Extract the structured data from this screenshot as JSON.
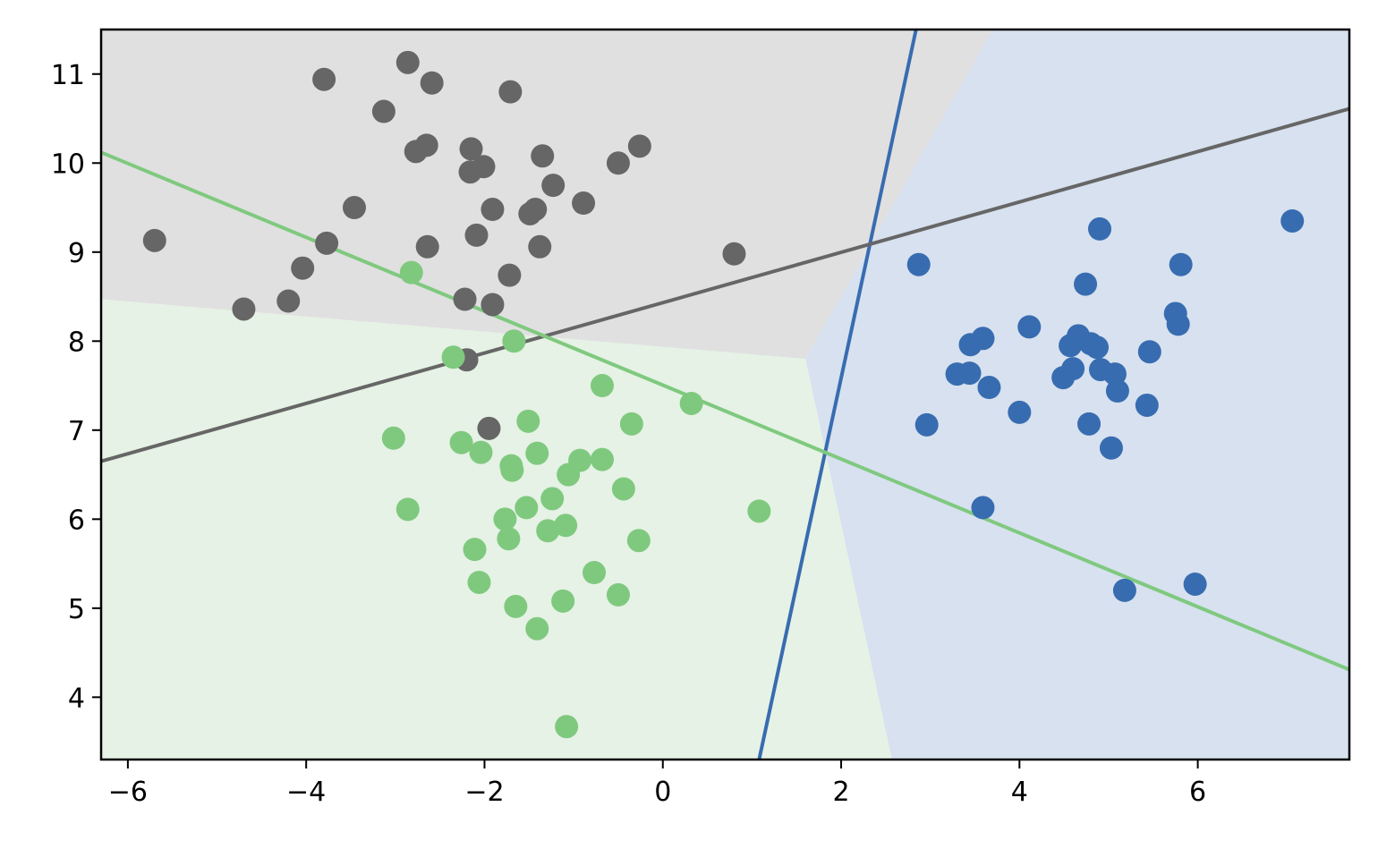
{
  "chart_data": {
    "type": "scatter",
    "title": "",
    "xlabel": "",
    "ylabel": "",
    "xlim": [
      -6.3,
      7.7
    ],
    "ylim": [
      3.3,
      11.5
    ],
    "x_ticks": [
      -6,
      -4,
      -2,
      0,
      2,
      4,
      6
    ],
    "x_tick_labels": [
      "−6",
      "−4",
      "−2",
      "0",
      "2",
      "4",
      "6"
    ],
    "y_ticks": [
      4,
      5,
      6,
      7,
      8,
      9,
      10,
      11
    ],
    "y_tick_labels": [
      "4",
      "5",
      "6",
      "7",
      "8",
      "9",
      "10",
      "11"
    ],
    "grid": false,
    "legend": "none",
    "colors": {
      "gray": "#666666",
      "green": "#7fc97f",
      "blue": "#386cb0",
      "gray_region": "#e0e0e0",
      "green_region": "#e5f2e5",
      "blue_region": "#d7e1ef"
    },
    "regions": [
      {
        "class": "gray",
        "polygon": [
          [
            -6.3,
            11.5
          ],
          [
            3.7,
            11.5
          ],
          [
            1.6,
            7.8
          ],
          [
            -6.3,
            8.47
          ]
        ]
      },
      {
        "class": "green",
        "polygon": [
          [
            -6.3,
            8.47
          ],
          [
            1.6,
            7.8
          ],
          [
            2.57,
            3.3
          ],
          [
            -6.3,
            3.3
          ]
        ]
      },
      {
        "class": "blue",
        "polygon": [
          [
            3.7,
            11.5
          ],
          [
            7.7,
            11.5
          ],
          [
            7.7,
            3.3
          ],
          [
            2.57,
            3.3
          ],
          [
            1.6,
            7.8
          ]
        ]
      }
    ],
    "lines": [
      {
        "class": "blue",
        "points": [
          [
            1.08,
            3.3
          ],
          [
            2.84,
            11.5
          ]
        ]
      },
      {
        "class": "gray",
        "points": [
          [
            -6.3,
            6.65
          ],
          [
            7.7,
            10.61
          ]
        ]
      },
      {
        "class": "green",
        "points": [
          [
            -6.3,
            10.12
          ],
          [
            7.7,
            4.31
          ]
        ]
      }
    ],
    "series": [
      {
        "class": "gray",
        "points": [
          [
            -5.7,
            9.13
          ],
          [
            -3.8,
            10.94
          ],
          [
            -2.86,
            11.13
          ],
          [
            -2.59,
            10.9
          ],
          [
            -1.71,
            10.8
          ],
          [
            -3.13,
            10.58
          ],
          [
            -2.77,
            10.13
          ],
          [
            -2.65,
            10.2
          ],
          [
            -2.15,
            10.16
          ],
          [
            -2.16,
            9.9
          ],
          [
            -2.01,
            9.96
          ],
          [
            -1.35,
            10.08
          ],
          [
            -0.5,
            10.0
          ],
          [
            -0.26,
            10.19
          ],
          [
            -1.23,
            9.75
          ],
          [
            -3.46,
            9.5
          ],
          [
            -1.91,
            9.48
          ],
          [
            -1.49,
            9.43
          ],
          [
            -1.43,
            9.48
          ],
          [
            -0.89,
            9.55
          ],
          [
            -2.09,
            9.19
          ],
          [
            -3.77,
            9.1
          ],
          [
            -2.64,
            9.06
          ],
          [
            -1.38,
            9.06
          ],
          [
            0.8,
            8.98
          ],
          [
            -4.04,
            8.82
          ],
          [
            -1.72,
            8.74
          ],
          [
            -4.7,
            8.36
          ],
          [
            -4.2,
            8.45
          ],
          [
            -2.22,
            8.47
          ],
          [
            -1.91,
            8.41
          ],
          [
            -2.2,
            7.79
          ],
          [
            -1.95,
            7.02
          ]
        ]
      },
      {
        "class": "green",
        "points": [
          [
            -2.82,
            8.77
          ],
          [
            -1.67,
            8.0
          ],
          [
            -2.35,
            7.82
          ],
          [
            -0.68,
            7.5
          ],
          [
            0.32,
            7.3
          ],
          [
            -1.51,
            7.1
          ],
          [
            -0.35,
            7.07
          ],
          [
            -3.02,
            6.91
          ],
          [
            -2.26,
            6.86
          ],
          [
            -2.04,
            6.75
          ],
          [
            -1.41,
            6.74
          ],
          [
            -1.7,
            6.6
          ],
          [
            -1.69,
            6.55
          ],
          [
            -0.93,
            6.66
          ],
          [
            -0.68,
            6.67
          ],
          [
            -1.06,
            6.5
          ],
          [
            -0.44,
            6.34
          ],
          [
            -1.24,
            6.23
          ],
          [
            -1.53,
            6.13
          ],
          [
            -2.86,
            6.11
          ],
          [
            1.08,
            6.09
          ],
          [
            -1.77,
            6.0
          ],
          [
            -1.09,
            5.93
          ],
          [
            -1.29,
            5.87
          ],
          [
            -1.73,
            5.78
          ],
          [
            -0.27,
            5.76
          ],
          [
            -2.11,
            5.66
          ],
          [
            -0.77,
            5.4
          ],
          [
            -2.06,
            5.29
          ],
          [
            -0.5,
            5.15
          ],
          [
            -1.12,
            5.08
          ],
          [
            -1.65,
            5.02
          ],
          [
            -1.41,
            4.77
          ],
          [
            -1.08,
            3.67
          ]
        ]
      },
      {
        "class": "blue",
        "points": [
          [
            7.06,
            9.35
          ],
          [
            4.9,
            9.26
          ],
          [
            2.87,
            8.86
          ],
          [
            5.81,
            8.86
          ],
          [
            4.74,
            8.64
          ],
          [
            5.75,
            8.31
          ],
          [
            5.78,
            8.19
          ],
          [
            4.11,
            8.16
          ],
          [
            3.59,
            8.03
          ],
          [
            3.45,
            7.96
          ],
          [
            4.66,
            8.06
          ],
          [
            4.57,
            7.95
          ],
          [
            4.8,
            7.97
          ],
          [
            4.87,
            7.93
          ],
          [
            5.46,
            7.88
          ],
          [
            3.3,
            7.63
          ],
          [
            3.44,
            7.64
          ],
          [
            4.91,
            7.68
          ],
          [
            5.07,
            7.63
          ],
          [
            4.6,
            7.69
          ],
          [
            4.49,
            7.59
          ],
          [
            3.66,
            7.48
          ],
          [
            5.1,
            7.44
          ],
          [
            5.43,
            7.28
          ],
          [
            4.0,
            7.2
          ],
          [
            2.96,
            7.06
          ],
          [
            4.78,
            7.07
          ],
          [
            5.03,
            6.8
          ],
          [
            3.59,
            6.13
          ],
          [
            5.97,
            5.27
          ],
          [
            5.18,
            5.2
          ]
        ]
      }
    ]
  }
}
